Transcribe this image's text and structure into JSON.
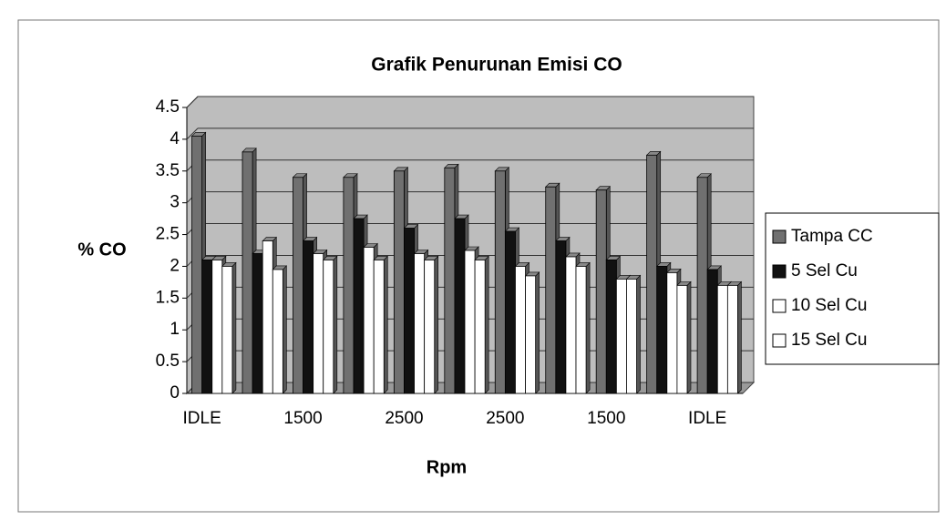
{
  "chart_data": {
    "type": "bar",
    "title": "Grafik Penurunan Emisi CO",
    "y_label": "% CO",
    "x_label": "Rpm",
    "categories": [
      "IDLE",
      null,
      "1500",
      null,
      "2500",
      null,
      "2500",
      null,
      "1500",
      null,
      "IDLE"
    ],
    "series": [
      {
        "name": "Tampa CC",
        "color": "#707070",
        "values": [
          4.05,
          3.8,
          3.4,
          3.4,
          3.5,
          3.55,
          3.5,
          3.25,
          3.2,
          3.75,
          3.4
        ]
      },
      {
        "name": "5 Sel Cu",
        "color": "#111111",
        "values": [
          2.1,
          2.2,
          2.4,
          2.75,
          2.6,
          2.75,
          2.55,
          2.4,
          2.1,
          2.0,
          1.95
        ]
      },
      {
        "name": "10 Sel Cu",
        "color": "#ffffff",
        "values": [
          2.1,
          2.4,
          2.2,
          2.3,
          2.2,
          2.25,
          2.0,
          2.15,
          1.8,
          1.9,
          1.7
        ]
      },
      {
        "name": "15 Sel Cu",
        "color": "#ffffff",
        "values": [
          2.0,
          1.95,
          2.1,
          2.1,
          2.1,
          2.1,
          1.85,
          2.0,
          1.8,
          1.7,
          1.7
        ]
      }
    ],
    "ylim": [
      0,
      4.5
    ],
    "yticks": [
      0,
      0.5,
      1,
      1.5,
      2,
      2.5,
      3,
      3.5,
      4,
      4.5
    ],
    "grid": true,
    "legend": "right"
  }
}
